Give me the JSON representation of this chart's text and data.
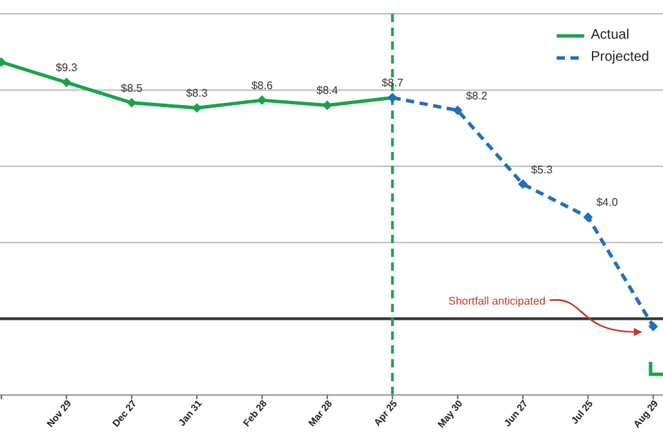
{
  "chart_data": {
    "type": "line",
    "categories": [
      null,
      "Nov 29",
      "Dec 27",
      "Jan 31",
      "Feb 28",
      "Mar 28",
      "Apr 25",
      "May 30",
      "Jun 27",
      "Jul 25",
      "Aug 29"
    ],
    "series": [
      {
        "name": "Actual",
        "color": "#1aa34a",
        "line_style": "solid",
        "values": [
          10.1,
          9.3,
          8.5,
          8.3,
          8.6,
          8.4,
          8.7,
          null,
          null,
          null,
          null
        ],
        "value_labels": [
          null,
          "$9.3",
          "$8.5",
          "$8.3",
          "$8.6",
          "$8.4",
          "$8.7",
          null,
          null,
          null,
          null
        ]
      },
      {
        "name": "Projected",
        "color": "#1f6fbf",
        "line_style": "dashed",
        "values": [
          null,
          null,
          null,
          null,
          null,
          null,
          8.7,
          8.2,
          5.3,
          4.0,
          -0.3
        ],
        "value_labels": [
          null,
          null,
          null,
          null,
          null,
          null,
          null,
          "$8.2",
          "$5.3",
          "$4.0",
          null
        ]
      }
    ],
    "ylim": [
      -3,
      12
    ],
    "yticks": [
      {
        "value": 3,
        "label": null
      },
      {
        "value": 6,
        "label": null
      },
      {
        "value": 9,
        "label": null
      },
      {
        "value": 12,
        "label": null
      }
    ],
    "grid": "y",
    "tick_labels": "x",
    "marker": "diamond",
    "legend": "top right",
    "ref_lines": [
      {
        "axis": "y",
        "value": 0,
        "color": "#333333",
        "line_style": "solid"
      },
      {
        "axis": "x",
        "value": "Apr 25",
        "color": "#1aa34a",
        "line_style": "dashed"
      }
    ],
    "annotations": [
      "Shortfall anticipated"
    ]
  }
}
